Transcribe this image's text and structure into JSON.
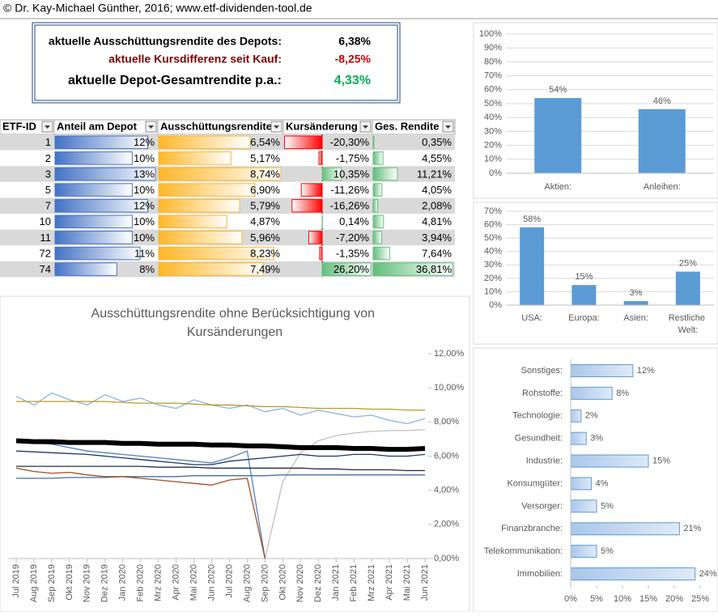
{
  "header": {
    "title": "© Dr. Kay-Michael Günther, 2016; www.etf-dividenden-tool.de"
  },
  "summary": {
    "rows": [
      {
        "label": "aktuelle Ausschüttungsrendite des Depots:",
        "value": "6,38%"
      },
      {
        "label": "aktuelle Kursdifferenz seit Kauf:",
        "value": "-8,25%"
      },
      {
        "label": "aktuelle Depot-Gesamtrendite p.a.:",
        "value": "4,33%"
      }
    ]
  },
  "table": {
    "headers": [
      "ETF-ID",
      "Anteil am Depot",
      "Ausschüttungsrendite",
      "Kursänderung",
      "Ges. Rendite"
    ],
    "ids": [
      1,
      2,
      3,
      5,
      7,
      10,
      11,
      72,
      74
    ],
    "columns": [
      {
        "values": [
          12,
          10,
          13,
          10,
          12,
          10,
          10,
          11,
          8
        ],
        "value_labels": [
          "12%",
          "10%",
          "13%",
          "10%",
          "12%",
          "10%",
          "10%",
          "11%",
          "8%"
        ]
      },
      {
        "values": [
          6.54,
          5.17,
          8.74,
          6.9,
          5.79,
          4.87,
          5.96,
          8.23,
          7.49
        ],
        "value_labels": [
          "6,54%",
          "5,17%",
          "8,74%",
          "6,90%",
          "5,79%",
          "4,87%",
          "5,96%",
          "8,23%",
          "7,49%"
        ]
      },
      {
        "values": [
          -20.3,
          -1.75,
          10.35,
          -11.26,
          -16.26,
          0.14,
          -7.2,
          -1.35,
          26.2
        ],
        "value_labels": [
          "-20,30%",
          "-1,75%",
          "10,35%",
          "-11,26%",
          "-16,26%",
          "0,14%",
          "-7,20%",
          "-1,35%",
          "26,20%"
        ]
      },
      {
        "values": [
          0.35,
          4.55,
          11.21,
          4.05,
          2.08,
          4.81,
          3.94,
          7.64,
          36.81
        ],
        "value_labels": [
          "0,35%",
          "4,55%",
          "11,21%",
          "4,05%",
          "2,08%",
          "4,81%",
          "3,94%",
          "7,64%",
          "36,81%"
        ]
      }
    ]
  },
  "chart_data": [
    {
      "type": "bar",
      "categories": [
        "Aktien:",
        "Anleihen:"
      ],
      "values": [
        54,
        46
      ],
      "value_labels": [
        "54%",
        "46%"
      ],
      "color": "#5b9bd5",
      "ylim": [
        0,
        100
      ],
      "yticks": [
        {
          "value": 0,
          "label": "0%"
        },
        {
          "value": 10,
          "label": "10%"
        },
        {
          "value": 20,
          "label": "20%"
        },
        {
          "value": 30,
          "label": "30%"
        },
        {
          "value": 40,
          "label": "40%"
        },
        {
          "value": 50,
          "label": "50%"
        },
        {
          "value": 60,
          "label": "60%"
        },
        {
          "value": 70,
          "label": "70%"
        },
        {
          "value": 80,
          "label": "80%"
        },
        {
          "value": 90,
          "label": "90%"
        },
        {
          "value": 100,
          "label": "100%"
        }
      ]
    },
    {
      "type": "bar",
      "categories": [
        "USA:",
        "Europa:",
        "Asien:",
        "Restliche Welt:"
      ],
      "values": [
        58,
        15,
        3,
        25
      ],
      "value_labels": [
        "58%",
        "15%",
        "3%",
        "25%"
      ],
      "color": "#5b9bd5",
      "ylim": [
        0,
        70
      ],
      "yticks": [
        {
          "value": 0,
          "label": "0%"
        },
        {
          "value": 10,
          "label": "10%"
        },
        {
          "value": 20,
          "label": "20%"
        },
        {
          "value": 30,
          "label": "30%"
        },
        {
          "value": 40,
          "label": "40%"
        },
        {
          "value": 50,
          "label": "50%"
        },
        {
          "value": 60,
          "label": "60%"
        },
        {
          "value": 70,
          "label": "70%"
        }
      ]
    },
    {
      "type": "barh",
      "categories": [
        "Sonstiges:",
        "Rohstoffe:",
        "Technologie:",
        "Gesundheit:",
        "Industrie:",
        "Konsumgüter:",
        "Versorger:",
        "Finanzbranche:",
        "Telekommunikation:",
        "Immobilien:"
      ],
      "values": [
        12,
        8,
        2,
        3,
        15,
        4,
        5,
        21,
        5,
        24
      ],
      "value_labels": [
        "12%",
        "8%",
        "2%",
        "3%",
        "15%",
        "4%",
        "5%",
        "21%",
        "5%",
        "24%"
      ],
      "color": "#5b9bd5",
      "xlim": [
        0,
        25
      ],
      "xticks": [
        {
          "value": 0,
          "label": "0%"
        },
        {
          "value": 5,
          "label": "5%"
        },
        {
          "value": 10,
          "label": "10%"
        },
        {
          "value": 15,
          "label": "15%"
        },
        {
          "value": 20,
          "label": "20%"
        },
        {
          "value": 25,
          "label": "25%"
        }
      ]
    },
    {
      "type": "line",
      "title": "Ausschüttungsrendite ohne Berücksichtigung von Kursänderungen",
      "categories": [
        "Jul 2019",
        "Aug 2019",
        "Sep 2019",
        "Okt 2019",
        "Nov 2019",
        "Dez 2019",
        "Jan 2020",
        "Feb 2020",
        "Mrz 2020",
        "Apr 2020",
        "Mai 2020",
        "Jun 2020",
        "Jul 2020",
        "Aug 2020",
        "Sep 2020",
        "Okt 2020",
        "Nov 2020",
        "Dez 2020",
        "Jan 2021",
        "Feb 2021",
        "Mrz 2021",
        "Apr 2021",
        "Mai 2021",
        "Jun 2021"
      ],
      "ylim": [
        0,
        12
      ],
      "yticks": [
        {
          "value": 0,
          "label": "0,00%"
        },
        {
          "value": 2,
          "label": "2,00%"
        },
        {
          "value": 4,
          "label": "4,00%"
        },
        {
          "value": 6,
          "label": "6,00%"
        },
        {
          "value": 8,
          "label": "8,00%"
        },
        {
          "value": 10,
          "label": "10,00%"
        },
        {
          "value": 12,
          "label": "12,00%"
        }
      ],
      "series": [
        {
          "color": "#8db4e2",
          "values": [
            9.5,
            9.0,
            9.7,
            9.3,
            9.0,
            9.6,
            9.2,
            9.4,
            9.0,
            8.8,
            9.3,
            9.0,
            8.8,
            9.0,
            8.6,
            8.8,
            8.4,
            8.7,
            8.5,
            8.3,
            8.4,
            8.1,
            7.9,
            8.2
          ]
        },
        {
          "color": "#b89a2e",
          "values": [
            9.2,
            9.2,
            9.2,
            9.2,
            9.2,
            9.2,
            9.15,
            9.1,
            9.1,
            9.1,
            9.05,
            9.0,
            9.0,
            8.95,
            8.9,
            8.9,
            8.85,
            8.8,
            8.8,
            8.8,
            8.75,
            8.75,
            8.7,
            8.7
          ]
        },
        {
          "color": "#ffc000",
          "values": [
            6.8,
            6.8,
            6.8,
            6.75,
            6.75,
            6.75,
            6.7,
            6.7,
            6.7,
            6.65,
            6.65,
            6.65,
            6.6,
            6.6,
            6.6,
            6.55,
            6.55,
            6.5,
            6.5,
            6.5,
            6.45,
            6.45,
            6.45,
            6.5
          ]
        },
        {
          "color": "#bfbfbf",
          "values": [
            null,
            null,
            null,
            null,
            null,
            null,
            null,
            null,
            null,
            null,
            null,
            null,
            null,
            null,
            0,
            4.5,
            6.2,
            6.9,
            7.2,
            7.35,
            7.45,
            7.5,
            7.5,
            7.55
          ]
        },
        {
          "color": "#4f81bd",
          "values": [
            6.9,
            6.8,
            6.7,
            6.5,
            6.3,
            6.2,
            6.1,
            6.0,
            5.9,
            5.8,
            5.7,
            5.6,
            5.9,
            6.3,
            0,
            null,
            null,
            null,
            null,
            null,
            null,
            null,
            null,
            null
          ]
        },
        {
          "color": "#1f3864",
          "values": [
            6.3,
            6.25,
            6.2,
            6.15,
            6.1,
            6.0,
            5.9,
            5.8,
            5.7,
            5.6,
            5.5,
            5.5,
            5.7,
            5.8,
            5.9,
            6.0,
            6.1,
            6.0,
            6.0,
            6.1,
            6.1,
            6.0,
            6.0,
            6.1
          ]
        },
        {
          "color": "#203040",
          "values": [
            5.4,
            5.4,
            5.4,
            5.4,
            5.4,
            5.4,
            5.4,
            5.4,
            5.35,
            5.35,
            5.35,
            5.3,
            5.3,
            5.3,
            5.3,
            5.3,
            5.3,
            5.25,
            5.25,
            5.2,
            5.2,
            5.2,
            5.15,
            5.15
          ]
        },
        {
          "color": "#4a6fa5",
          "values": [
            4.7,
            4.7,
            4.7,
            4.75,
            4.75,
            4.75,
            4.8,
            4.8,
            4.8,
            4.8,
            4.85,
            4.85,
            4.85,
            4.85,
            4.85,
            4.9,
            4.9,
            4.9,
            4.9,
            4.9,
            4.9,
            4.9,
            4.9,
            4.9
          ]
        },
        {
          "color": "#a05020",
          "values": [
            5.3,
            5.1,
            5.0,
            5.05,
            4.9,
            4.8,
            4.8,
            4.7,
            4.6,
            4.5,
            4.4,
            4.3,
            4.6,
            4.7,
            0,
            null,
            null,
            null,
            null,
            null,
            null,
            null,
            null,
            null
          ]
        },
        {
          "color": "#000000",
          "width": 6,
          "values": [
            6.9,
            6.85,
            6.85,
            6.8,
            6.8,
            6.8,
            6.75,
            6.75,
            6.7,
            6.7,
            6.7,
            6.65,
            6.65,
            6.6,
            6.6,
            6.55,
            6.5,
            6.5,
            6.5,
            6.45,
            6.45,
            6.4,
            6.4,
            6.45
          ]
        }
      ]
    }
  ]
}
